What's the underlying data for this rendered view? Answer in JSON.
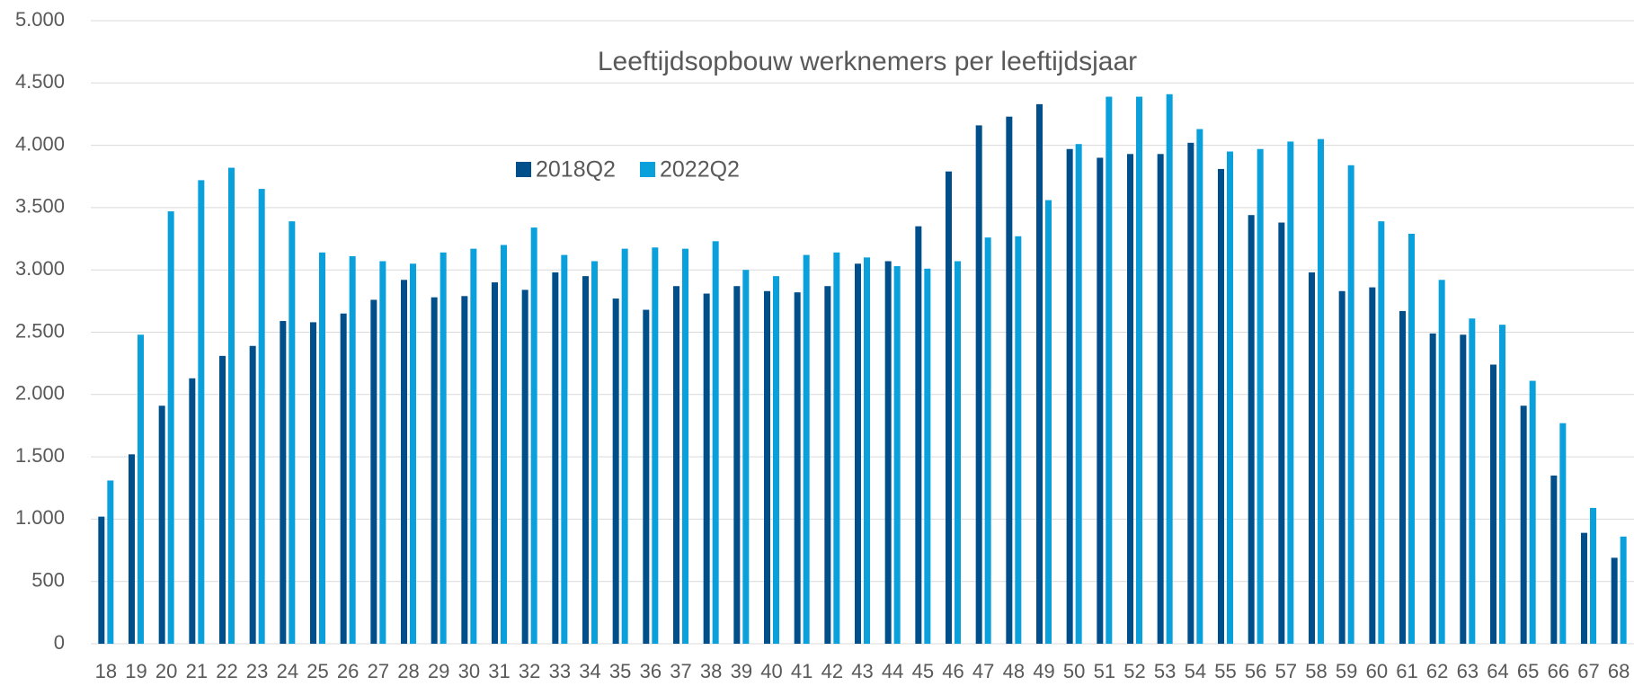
{
  "chart_data": {
    "type": "bar",
    "title": "Leeftijdsopbouw werknemers per leeftijdsjaar",
    "categories": [
      "18",
      "19",
      "20",
      "21",
      "22",
      "23",
      "24",
      "25",
      "26",
      "27",
      "28",
      "29",
      "30",
      "31",
      "32",
      "33",
      "34",
      "35",
      "36",
      "37",
      "38",
      "39",
      "40",
      "41",
      "42",
      "43",
      "44",
      "45",
      "46",
      "47",
      "48",
      "49",
      "50",
      "51",
      "52",
      "53",
      "54",
      "55",
      "56",
      "57",
      "58",
      "59",
      "60",
      "61",
      "62",
      "63",
      "64",
      "65",
      "66",
      "67",
      "68"
    ],
    "series": [
      {
        "name": "2018Q2",
        "color": "#004f8b",
        "values": [
          1020,
          1520,
          1910,
          2130,
          2310,
          2390,
          2590,
          2580,
          2650,
          2760,
          2920,
          2780,
          2790,
          2900,
          2840,
          2980,
          2950,
          2770,
          2680,
          2870,
          2810,
          2870,
          2830,
          2820,
          2870,
          3050,
          3070,
          3350,
          3790,
          4160,
          4230,
          4330,
          3970,
          3900,
          3930,
          3930,
          4020,
          3810,
          3440,
          3380,
          2980,
          2830,
          2860,
          2670,
          2490,
          2480,
          2240,
          1910,
          1350,
          890,
          690
        ]
      },
      {
        "name": "2022Q2",
        "color": "#0aa0dc",
        "values": [
          1310,
          2480,
          3470,
          3720,
          3820,
          3650,
          3390,
          3140,
          3110,
          3070,
          3050,
          3140,
          3170,
          3200,
          3340,
          3120,
          3070,
          3170,
          3180,
          3170,
          3230,
          3000,
          2950,
          3120,
          3140,
          3100,
          3030,
          3010,
          3070,
          3260,
          3270,
          3560,
          4010,
          4390,
          4390,
          4410,
          4130,
          3950,
          3970,
          4030,
          4050,
          3840,
          3390,
          3290,
          2920,
          2610,
          2560,
          2110,
          1770,
          1090,
          860
        ]
      }
    ],
    "ylim": [
      0,
      5000
    ],
    "yticks": [
      0,
      500,
      {
        "value": 1000,
        "label": "1.000"
      },
      {
        "value": 1500,
        "label": "1.500"
      },
      {
        "value": 2000,
        "label": "2.000"
      },
      {
        "value": 2500,
        "label": "2.500"
      },
      {
        "value": 3000,
        "label": "3.000"
      },
      {
        "value": 3500,
        "label": "3.500"
      },
      {
        "value": 4000,
        "label": "4.000"
      },
      {
        "value": 4500,
        "label": "4.500"
      },
      {
        "value": 5000,
        "label": "5.000"
      }
    ],
    "grid": true
  }
}
